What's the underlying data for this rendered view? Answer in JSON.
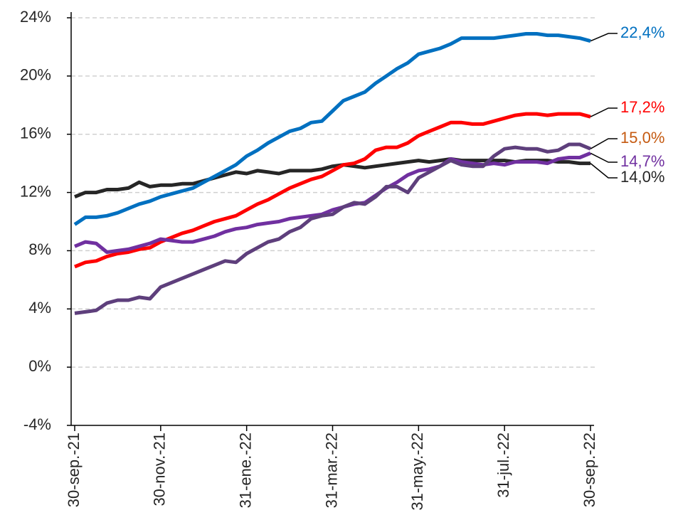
{
  "chart_data": {
    "type": "line",
    "categories": [
      "30-sep.-21",
      null,
      null,
      null,
      null,
      null,
      null,
      null,
      "30-nov.-21",
      null,
      null,
      null,
      null,
      null,
      null,
      null,
      "31-ene.-22",
      null,
      null,
      null,
      null,
      null,
      null,
      null,
      "31-mar.-22",
      null,
      null,
      null,
      null,
      null,
      null,
      null,
      "31-may.-22",
      null,
      null,
      null,
      null,
      null,
      null,
      null,
      "31-jul.-22",
      null,
      null,
      null,
      null,
      null,
      null,
      null,
      "30-sep.-22"
    ],
    "ylim": [
      -4,
      24
    ],
    "yticks": [
      {
        "value": -4,
        "label": "-4%"
      },
      {
        "value": 0,
        "label": "0%"
      },
      {
        "value": 4,
        "label": "4%"
      },
      {
        "value": 8,
        "label": "8%"
      },
      {
        "value": 12,
        "label": "12%"
      },
      {
        "value": 16,
        "label": "16%"
      },
      {
        "value": 20,
        "label": "20%"
      },
      {
        "value": 24,
        "label": "24%"
      }
    ],
    "grid": true,
    "series": [
      {
        "color": "#262626",
        "label": "14,0%",
        "label_color": "#262626",
        "values": [
          11.7,
          12.0,
          12.0,
          12.2,
          12.2,
          12.3,
          12.7,
          12.4,
          12.5,
          12.5,
          12.6,
          12.6,
          12.8,
          13.0,
          13.2,
          13.4,
          13.3,
          13.5,
          13.4,
          13.3,
          13.5,
          13.5,
          13.5,
          13.6,
          13.8,
          13.9,
          13.8,
          13.7,
          13.8,
          13.9,
          14.0,
          14.1,
          14.2,
          14.1,
          14.2,
          14.3,
          14.2,
          14.2,
          14.2,
          14.2,
          14.2,
          14.1,
          14.2,
          14.2,
          14.2,
          14.1,
          14.1,
          14.0,
          14.0
        ]
      },
      {
        "color": "#ff0000",
        "label": "17,2%",
        "label_color": "#ff0000",
        "values": [
          6.9,
          7.2,
          7.3,
          7.6,
          7.8,
          7.9,
          8.1,
          8.2,
          8.6,
          8.9,
          9.2,
          9.4,
          9.7,
          10.0,
          10.2,
          10.4,
          10.8,
          11.2,
          11.5,
          11.9,
          12.3,
          12.6,
          12.9,
          13.1,
          13.5,
          13.9,
          14.0,
          14.3,
          14.9,
          15.1,
          15.1,
          15.4,
          15.9,
          16.2,
          16.5,
          16.8,
          16.8,
          16.7,
          16.7,
          16.9,
          17.1,
          17.3,
          17.4,
          17.4,
          17.3,
          17.4,
          17.4,
          17.4,
          17.2
        ]
      },
      {
        "color": "#0070c0",
        "label": "22,4%",
        "label_color": "#0070c0",
        "values": [
          9.8,
          10.3,
          10.3,
          10.4,
          10.6,
          10.9,
          11.2,
          11.4,
          11.7,
          11.9,
          12.1,
          12.3,
          12.7,
          13.1,
          13.5,
          13.9,
          14.5,
          14.9,
          15.4,
          15.8,
          16.2,
          16.4,
          16.8,
          16.9,
          17.6,
          18.3,
          18.6,
          18.9,
          19.5,
          20.0,
          20.5,
          20.9,
          21.5,
          21.7,
          21.9,
          22.2,
          22.6,
          22.6,
          22.6,
          22.6,
          22.7,
          22.8,
          22.9,
          22.9,
          22.8,
          22.8,
          22.7,
          22.6,
          22.4
        ]
      },
      {
        "color": "#7030a0",
        "label": "14,7%",
        "label_color": "#7030a0",
        "values": [
          8.3,
          8.6,
          8.5,
          7.9,
          8.0,
          8.1,
          8.3,
          8.5,
          8.8,
          8.7,
          8.6,
          8.6,
          8.8,
          9.0,
          9.3,
          9.5,
          9.6,
          9.8,
          9.9,
          10.0,
          10.2,
          10.3,
          10.4,
          10.5,
          10.8,
          11.0,
          11.2,
          11.3,
          11.8,
          12.3,
          12.7,
          13.2,
          13.5,
          13.6,
          13.8,
          14.3,
          14.1,
          14.0,
          13.9,
          14.0,
          13.9,
          14.1,
          14.1,
          14.1,
          14.0,
          14.3,
          14.4,
          14.4,
          14.7
        ]
      },
      {
        "color": "#5e3f7c",
        "label": "15,0%",
        "label_color": "#c55a11",
        "values": [
          3.7,
          3.8,
          3.9,
          4.4,
          4.6,
          4.6,
          4.8,
          4.7,
          5.5,
          5.8,
          6.1,
          6.4,
          6.7,
          7.0,
          7.3,
          7.2,
          7.8,
          8.2,
          8.6,
          8.8,
          9.3,
          9.6,
          10.2,
          10.4,
          10.5,
          11.0,
          11.3,
          11.2,
          11.7,
          12.4,
          12.4,
          12.0,
          13.0,
          13.4,
          13.8,
          14.2,
          13.9,
          13.8,
          13.8,
          14.5,
          15.0,
          15.1,
          15.0,
          15.0,
          14.8,
          14.9,
          15.3,
          15.3,
          15.0
        ]
      }
    ]
  }
}
